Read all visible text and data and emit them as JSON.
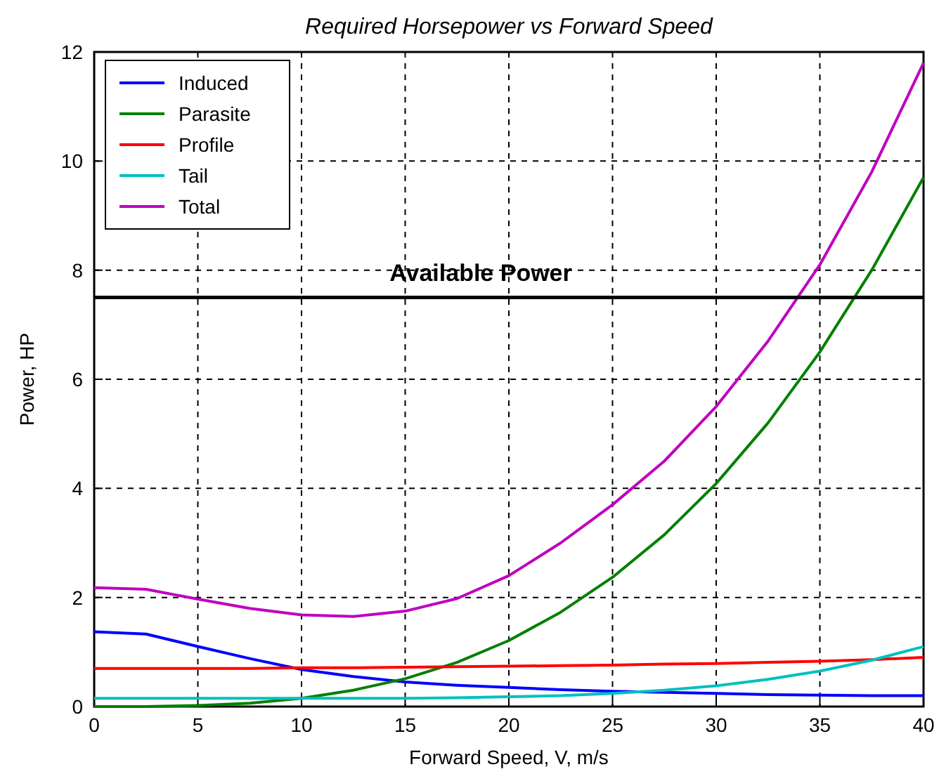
{
  "chart_data": {
    "type": "line",
    "title": "Required Horsepower vs Forward Speed",
    "xlabel": "Forward Speed, V, m/s",
    "ylabel": "Power, HP",
    "x": [
      0,
      2.5,
      5,
      7.5,
      10,
      12.5,
      15,
      17.5,
      20,
      22.5,
      25,
      27.5,
      30,
      32.5,
      35,
      37.5,
      40
    ],
    "series": [
      {
        "name": "Induced",
        "color": "#0000ff",
        "values": [
          1.37,
          1.33,
          1.1,
          0.88,
          0.68,
          0.55,
          0.45,
          0.39,
          0.35,
          0.31,
          0.28,
          0.26,
          0.24,
          0.22,
          0.21,
          0.2,
          0.2
        ]
      },
      {
        "name": "Parasite",
        "color": "#008000",
        "values": [
          0,
          0,
          0.02,
          0.06,
          0.15,
          0.3,
          0.51,
          0.81,
          1.21,
          1.73,
          2.37,
          3.15,
          4.09,
          5.2,
          6.5,
          8.0,
          9.7
        ]
      },
      {
        "name": "Profile",
        "color": "#ff0000",
        "values": [
          0.7,
          0.7,
          0.7,
          0.7,
          0.71,
          0.71,
          0.72,
          0.73,
          0.74,
          0.75,
          0.76,
          0.78,
          0.79,
          0.81,
          0.83,
          0.86,
          0.9
        ]
      },
      {
        "name": "Tail",
        "color": "#00c0c0",
        "values": [
          0.15,
          0.15,
          0.15,
          0.15,
          0.15,
          0.15,
          0.15,
          0.16,
          0.18,
          0.2,
          0.24,
          0.3,
          0.38,
          0.5,
          0.65,
          0.85,
          1.1
        ]
      },
      {
        "name": "Total",
        "color": "#c000c0",
        "values": [
          2.18,
          2.15,
          1.97,
          1.8,
          1.68,
          1.65,
          1.75,
          1.98,
          2.4,
          3.0,
          3.7,
          4.5,
          5.5,
          6.7,
          8.1,
          9.8,
          11.8
        ]
      }
    ],
    "xlim": [
      0,
      40
    ],
    "xticks": [
      0,
      5,
      10,
      15,
      20,
      25,
      30,
      35,
      40
    ],
    "ylim": [
      0,
      12
    ],
    "yticks": [
      0,
      2,
      4,
      6,
      8,
      10,
      12
    ],
    "ref_lines": [
      {
        "axis": "y",
        "value": 7.5,
        "label": "Available Power",
        "color": "#000000"
      }
    ],
    "grid": true,
    "legend": "top left",
    "line_style": "solid",
    "marker": "none"
  }
}
